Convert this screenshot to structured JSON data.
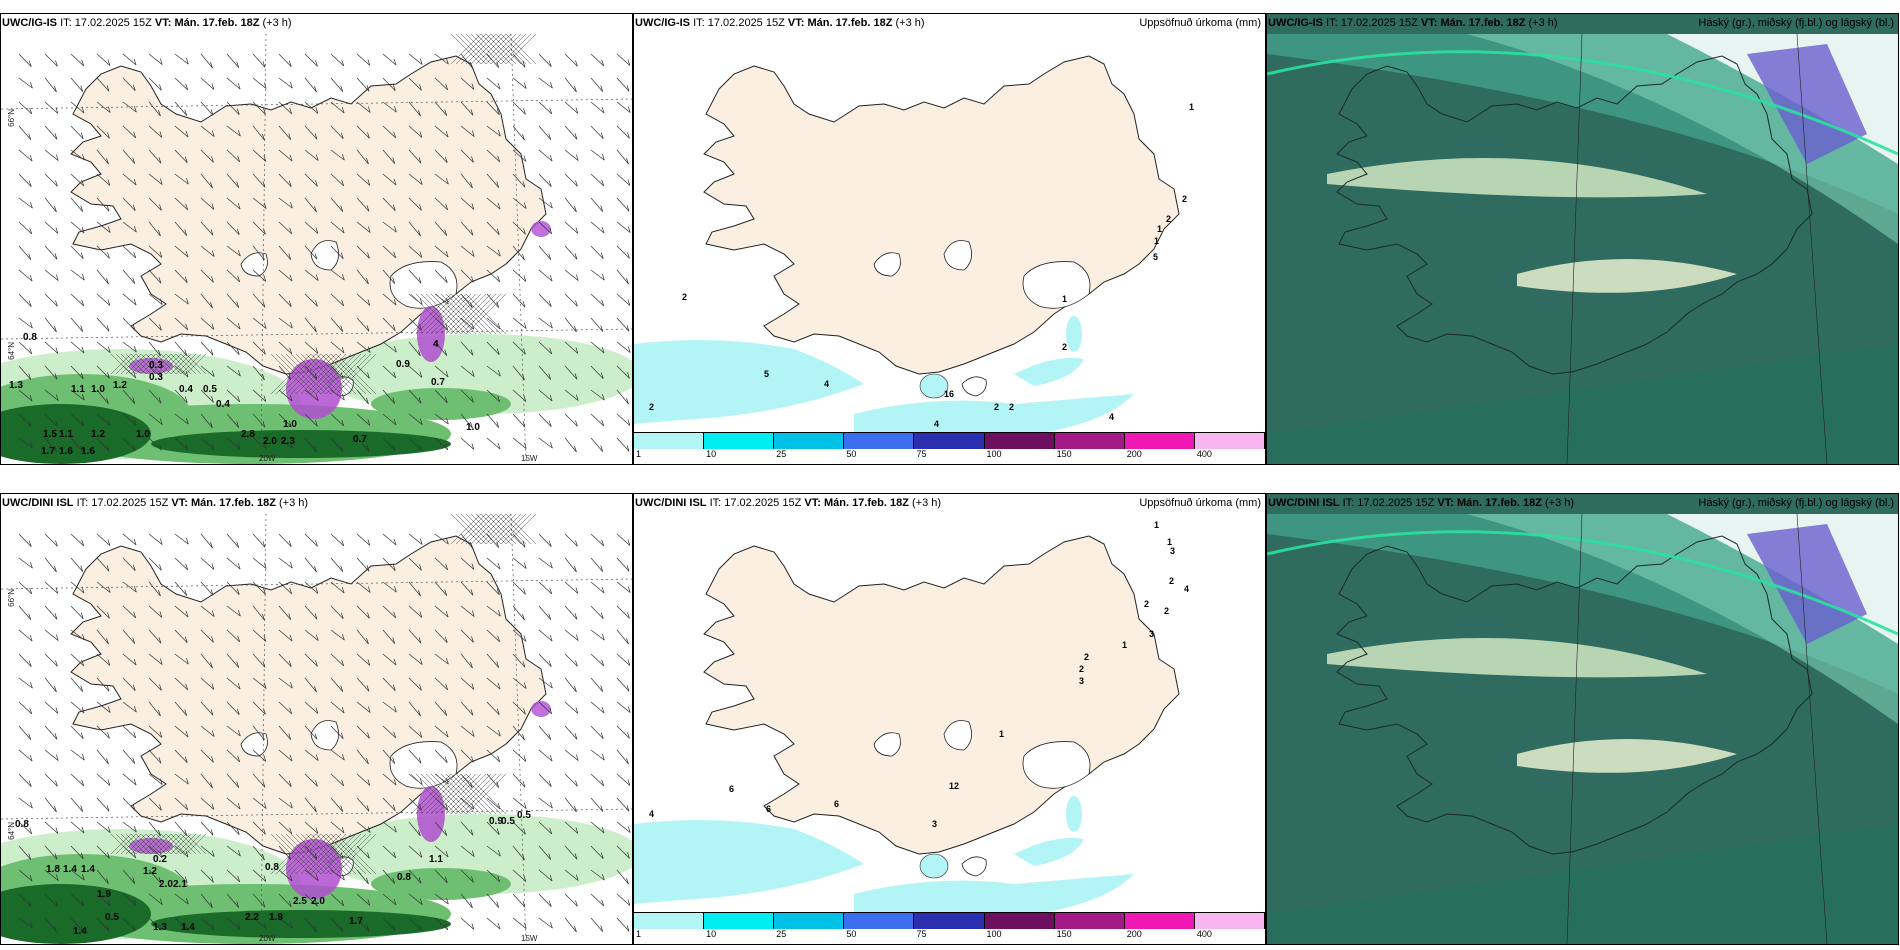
{
  "rows": [
    {
      "model": "UWC/IG-IS",
      "it_label": "IT:",
      "it_value": "17.02.2025 15Z",
      "vt_label": "VT:",
      "vt_value": "Mán. 17.feb. 18Z",
      "lead": "(+3 h)",
      "panels": [
        {
          "kind": "wind",
          "title": "",
          "labels": [
            "0.8",
            "1.3",
            "1.1",
            "1.0",
            "1.2",
            "0.3",
            "0.3",
            "0.4",
            "0.5",
            "1.0",
            "0.7",
            "0.7",
            "1.5",
            "1.1",
            "1.2",
            "1.0",
            "1.6",
            "2.8",
            "2.0",
            "2.3",
            "1.7",
            "1.6",
            "0.4",
            "0.9",
            "1.0",
            "4"
          ]
        },
        {
          "kind": "precip",
          "title": "Uppsöfnuð úrkoma (mm)",
          "labels": [
            "1",
            "2",
            "2",
            "1",
            "1",
            "5",
            "1",
            "2",
            "16",
            "4",
            "5",
            "4",
            "2",
            "2",
            "2",
            "4",
            "2"
          ]
        },
        {
          "kind": "cloud",
          "title": "Háský (gr.), miðský (fj.bl.) og lágský (bl.)"
        }
      ]
    },
    {
      "model": "UWC/DINI ISL",
      "it_label": "IT:",
      "it_value": "17.02.2025 15Z",
      "vt_label": "VT:",
      "vt_value": "Mán. 17.feb. 18Z",
      "lead": "(+3 h)",
      "panels": [
        {
          "kind": "wind",
          "title": "",
          "labels": [
            "0.8",
            "1.8",
            "1.4",
            "1.4",
            "1.9",
            "0.5",
            "1.2",
            "2.0",
            "2.1",
            "0.2",
            "0.8",
            "0.8",
            "1.1",
            "2.5",
            "2.0",
            "1.9",
            "1.7",
            "2.2",
            "1.3",
            "1.4",
            "1.4",
            "0.9",
            "0.5",
            "0.5"
          ]
        },
        {
          "kind": "precip",
          "title": "Uppsöfnuð úrkoma (mm)",
          "labels": [
            "1",
            "1",
            "3",
            "2",
            "4",
            "2",
            "2",
            "3",
            "1",
            "2",
            "2",
            "1",
            "3",
            "6",
            "6",
            "6",
            "4",
            "3",
            "12"
          ]
        },
        {
          "kind": "cloud",
          "title": "Háský (gr.), miðský (fj.bl.) og lágský (bl.)"
        }
      ]
    }
  ],
  "axis": {
    "lat66": "66°N",
    "lat64": "64°N",
    "lon20": "20W",
    "lon15": "15W"
  },
  "colorbar": {
    "ticks": [
      "1",
      "10",
      "25",
      "50",
      "75",
      "100",
      "150",
      "200",
      "400"
    ],
    "colors": [
      "#b3f5f7",
      "#00eef2",
      "#00c2e8",
      "#3b6ff0",
      "#2a2fb0",
      "#6b0f5e",
      "#a31a86",
      "#f018b4",
      "#f7b6ef"
    ]
  },
  "colors": {
    "land": "#fbefe2",
    "green_light": "#cdeecb",
    "green_mid": "#6fbf73",
    "green_dark": "#1a6b2a",
    "purple": "#b04ed0",
    "cloud_base": "#2f6b5e",
    "cloud_teal": "#2fae8e"
  }
}
